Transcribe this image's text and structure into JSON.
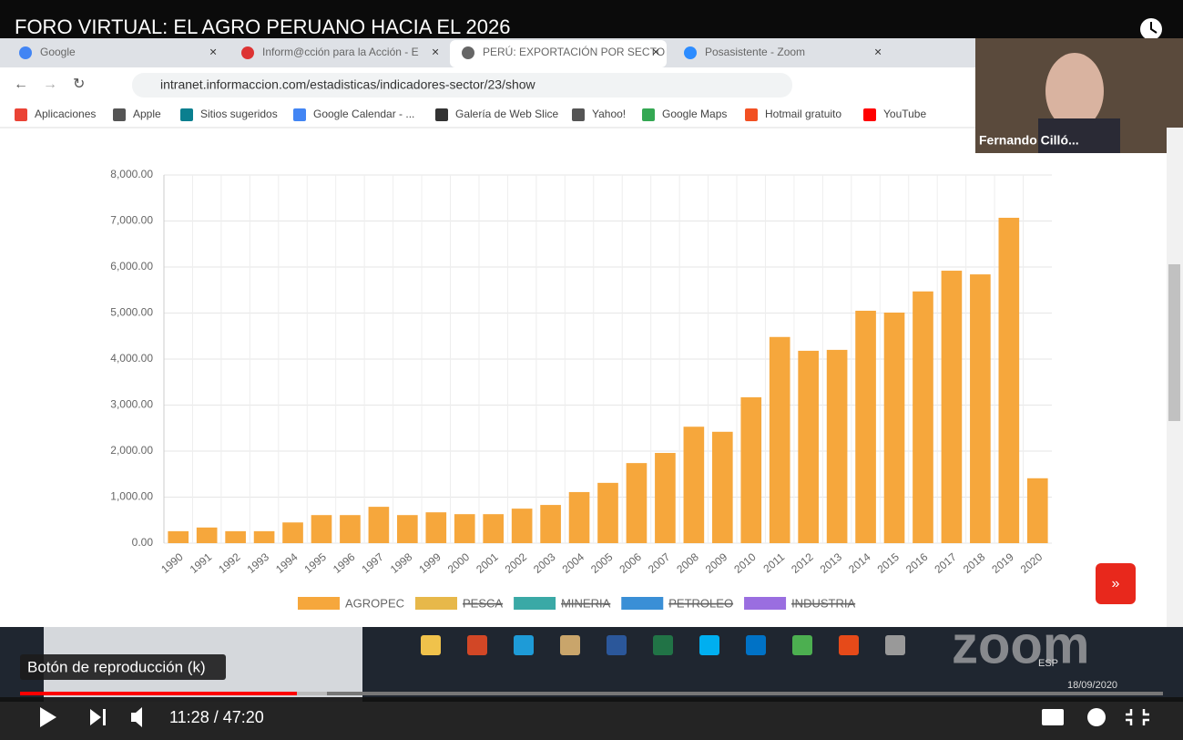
{
  "video": {
    "title": "FORO VIRTUAL: EL AGRO PERUANO HACIA EL 2026",
    "tooltip": "Botón de reproducción (k)",
    "time": "11:28 / 47:20",
    "participant": "Fernando Cilló..."
  },
  "browser": {
    "tabs": [
      "Google",
      "Inform@cción para la Acción - E",
      "PERÚ: EXPORTACIÓN POR SECTO",
      "Posasistente - Zoom"
    ],
    "url": "intranet.informaccion.com/estadisticas/indicadores-sector/23/show",
    "bookmarks": [
      "Aplicaciones",
      "Apple",
      "Sitios sugeridos",
      "Google Calendar - ...",
      "Galería de Web Slice",
      "Yahoo!",
      "Google Maps",
      "Hotmail gratuito",
      "YouTube"
    ]
  },
  "taskbar": {
    "language": "ESP",
    "date": "18/09/2020"
  },
  "chart_data": {
    "type": "bar",
    "categories": [
      "1990",
      "1991",
      "1992",
      "1993",
      "1994",
      "1995",
      "1996",
      "1997",
      "1998",
      "1999",
      "2000",
      "2001",
      "2002",
      "2003",
      "2004",
      "2005",
      "2006",
      "2007",
      "2008",
      "2009",
      "2010",
      "2011",
      "2012",
      "2013",
      "2014",
      "2015",
      "2016",
      "2017",
      "2018",
      "2019",
      "2020"
    ],
    "series": [
      {
        "name": "AGROPEC",
        "color": "#f6a73c",
        "values": [
          260,
          340,
          260,
          260,
          450,
          610,
          610,
          790,
          610,
          670,
          630,
          630,
          750,
          830,
          1110,
          1310,
          1740,
          1960,
          2530,
          2420,
          3170,
          4480,
          4180,
          4200,
          5050,
          5010,
          5470,
          5920,
          5840,
          7070,
          1410
        ]
      }
    ],
    "hidden_legend": [
      {
        "name": "PESCA",
        "color": "#e7b84a"
      },
      {
        "name": "MINERIA",
        "color": "#3aa9a6"
      },
      {
        "name": "PETROLEO",
        "color": "#3a8fd6"
      },
      {
        "name": "INDUSTRIA",
        "color": "#9a6ee0"
      }
    ],
    "ylim": [
      0,
      8000
    ],
    "yticks": [
      {
        "value": 0,
        "label": "0.00"
      },
      {
        "value": 1000,
        "label": "1,000.00"
      },
      {
        "value": 2000,
        "label": "2,000.00"
      },
      {
        "value": 3000,
        "label": "3,000.00"
      },
      {
        "value": 4000,
        "label": "4,000.00"
      },
      {
        "value": 5000,
        "label": "5,000.00"
      },
      {
        "value": 6000,
        "label": "6,000.00"
      },
      {
        "value": 7000,
        "label": "7,000.00"
      },
      {
        "value": 8000,
        "label": "8,000.00"
      }
    ],
    "grid": true
  }
}
